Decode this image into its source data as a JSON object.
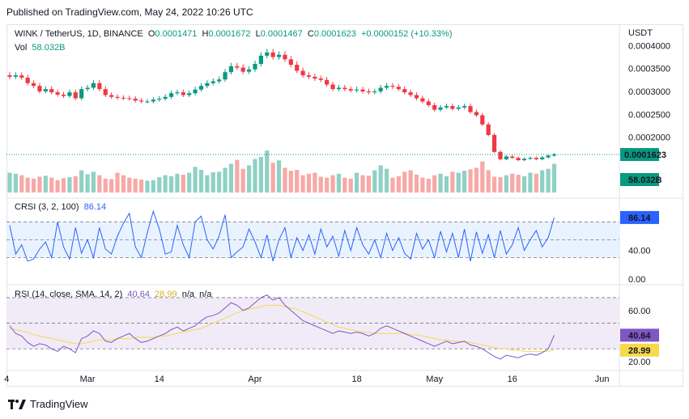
{
  "header": {
    "published": "Published on TradingView.com, May 24, 2022 10:26 UTC"
  },
  "legend": {
    "symbol": "WINK / TetherUS, 1D, BINANCE",
    "o_label": "O",
    "o": "0.0001471",
    "h_label": "H",
    "h": "0.0001672",
    "l_label": "L",
    "l": "0.0001467",
    "c_label": "C",
    "c": "0.0001623",
    "change": "+0.0000152 (+10.33%)",
    "vol_label": "Vol",
    "vol": "58.032B",
    "crsi_label": "CRSI (3, 2, 100)",
    "crsi_value": "86.14",
    "rsi_label": "RSI (14, close, SMA, 14, 2)",
    "rsi_value": "40.64",
    "rsi_ma_value": "28.99",
    "rsi_na1": "n/a",
    "rsi_na2": "n/a"
  },
  "price_axis": {
    "currency": "USDT",
    "ticks": [
      "0.0004000",
      "0.0003500",
      "0.0003000",
      "0.0002500",
      "0.0002000"
    ],
    "last_price_tag": "0.0001623",
    "volume_tag": "58.032B"
  },
  "crsi_axis": {
    "ticks": [
      "40.00",
      "0.00"
    ],
    "value_tag": "86.14"
  },
  "rsi_axis": {
    "ticks": [
      "60.00",
      "20.00"
    ],
    "value_tag": "40.64",
    "ma_tag": "28.99"
  },
  "time_axis": {
    "labels": [
      "4",
      "Mar",
      "14",
      "Apr",
      "18",
      "May",
      "16",
      "Jun"
    ]
  },
  "footer": {
    "brand": "TradingView"
  },
  "colors": {
    "up": "#089981",
    "down": "#f23645",
    "vol_up": "#8fd1c4",
    "vol_down": "#f7a9a7",
    "crsi": "#2962ff",
    "rsi": "#7e57c2",
    "rsi_ma": "#f7d94c"
  },
  "chart_data": [
    {
      "type": "candlestick",
      "title": "WINK / TetherUS, 1D, BINANCE",
      "ylim": [
        0.0001,
        0.00042
      ],
      "series": [
        {
          "name": "price",
          "close": [
            0.000332,
            0.000335,
            0.00033,
            0.000318,
            0.000312,
            0.0003,
            0.000305,
            0.000298,
            0.000293,
            0.00029,
            0.000298,
            0.000285,
            0.000305,
            0.000308,
            0.000318,
            0.000305,
            0.000292,
            0.000288,
            0.000286,
            0.000285,
            0.000284,
            0.00028,
            0.000278,
            0.000278,
            0.000282,
            0.000284,
            0.000288,
            0.000296,
            0.000298,
            0.000292,
            0.000296,
            0.000304,
            0.000312,
            0.000318,
            0.000322,
            0.000326,
            0.000342,
            0.000355,
            0.000352,
            0.000343,
            0.000348,
            0.00036,
            0.000378,
            0.000385,
            0.000375,
            0.00038,
            0.00037,
            0.000358,
            0.000345,
            0.000335,
            0.000332,
            0.000328,
            0.000325,
            0.000315,
            0.000305,
            0.000308,
            0.000305,
            0.000302,
            0.000304,
            0.0003,
            0.000298,
            0.0003,
            0.000308,
            0.000312,
            0.00031,
            0.000305,
            0.000298,
            0.000292,
            0.000285,
            0.000278,
            0.00027,
            0.00026,
            0.000265,
            0.000268,
            0.000262,
            0.000265,
            0.000268,
            0.000255,
            0.000248,
            0.000228,
            0.000205,
            0.000168,
            0.000152,
            0.000158,
            0.000155,
            0.00015,
            0.000153,
            0.000155,
            0.000152,
            0.000156,
            0.00016,
            0.0001623
          ]
        },
        {
          "name": "volume (B)",
          "values": [
            40,
            38,
            35,
            30,
            28,
            32,
            34,
            30,
            25,
            29,
            31,
            33,
            45,
            37,
            42,
            35,
            28,
            27,
            40,
            35,
            30,
            28,
            26,
            24,
            25,
            31,
            35,
            33,
            38,
            36,
            40,
            52,
            46,
            35,
            41,
            42,
            50,
            58,
            66,
            48,
            55,
            68,
            72,
            85,
            60,
            65,
            50,
            44,
            46,
            35,
            38,
            40,
            32,
            30,
            35,
            38,
            30,
            28,
            40,
            35,
            34,
            45,
            55,
            48,
            30,
            33,
            42,
            45,
            36,
            30,
            28,
            35,
            38,
            33,
            42,
            40,
            44,
            47,
            50,
            63,
            45,
            32,
            31,
            35,
            38,
            36,
            33,
            40,
            38,
            45,
            48,
            58
          ]
        }
      ],
      "ylabel": "USDT"
    },
    {
      "type": "line",
      "title": "CRSI (3, 2, 100)",
      "ylim": [
        0,
        100
      ],
      "bands": [
        30,
        80
      ],
      "series": [
        {
          "name": "CRSI",
          "values": [
            75,
            35,
            48,
            25,
            28,
            42,
            52,
            30,
            80,
            45,
            28,
            72,
            36,
            55,
            30,
            72,
            42,
            35,
            60,
            78,
            92,
            45,
            30,
            65,
            95,
            70,
            35,
            38,
            75,
            48,
            30,
            80,
            88,
            55,
            42,
            60,
            90,
            30,
            38,
            45,
            70,
            52,
            30,
            62,
            25,
            55,
            72,
            30,
            58,
            40,
            62,
            35,
            70,
            45,
            60,
            32,
            68,
            40,
            72,
            48,
            35,
            55,
            30,
            64,
            40,
            58,
            36,
            28,
            64,
            42,
            55,
            30,
            67,
            38,
            64,
            30,
            70,
            25,
            66,
            36,
            62,
            30,
            68,
            35,
            48,
            72,
            40,
            55,
            68,
            45,
            58,
            86.14
          ]
        }
      ]
    },
    {
      "type": "line",
      "title": "RSI (14, close, SMA, 14, 2)",
      "ylim": [
        15,
        75
      ],
      "bands": [
        30,
        50,
        70
      ],
      "series": [
        {
          "name": "RSI",
          "values": [
            48,
            42,
            40,
            35,
            32,
            34,
            33,
            30,
            28,
            32,
            30,
            27,
            38,
            40,
            44,
            42,
            36,
            35,
            38,
            40,
            42,
            38,
            35,
            36,
            38,
            40,
            42,
            45,
            47,
            44,
            46,
            48,
            52,
            55,
            56,
            58,
            62,
            66,
            64,
            60,
            62,
            66,
            70,
            72,
            68,
            70,
            64,
            60,
            56,
            52,
            50,
            48,
            46,
            44,
            42,
            44,
            43,
            42,
            43,
            42,
            40,
            42,
            46,
            48,
            46,
            44,
            42,
            40,
            38,
            36,
            34,
            32,
            34,
            36,
            34,
            35,
            36,
            33,
            32,
            30,
            27,
            24,
            22,
            25,
            24,
            23,
            25,
            26,
            25,
            27,
            30,
            40.64
          ]
        },
        {
          "name": "RSI MA",
          "values": [
            46,
            45,
            44,
            43,
            41,
            40,
            39,
            38,
            37,
            36,
            35,
            34,
            34,
            35,
            36,
            37,
            37,
            37,
            38,
            38,
            38,
            39,
            39,
            39,
            39,
            40,
            40,
            41,
            42,
            43,
            44,
            45,
            46,
            48,
            50,
            52,
            54,
            56,
            58,
            60,
            61,
            62,
            63,
            64,
            64,
            64,
            63,
            62,
            61,
            59,
            57,
            55,
            53,
            51,
            49,
            47,
            46,
            45,
            44,
            43,
            43,
            42,
            42,
            42,
            42,
            42,
            42,
            41,
            41,
            40,
            39,
            38,
            37,
            37,
            36,
            36,
            35,
            35,
            34,
            33,
            32,
            31,
            30,
            30,
            29,
            29,
            28,
            28,
            28,
            28,
            28,
            28.99
          ]
        }
      ]
    }
  ]
}
